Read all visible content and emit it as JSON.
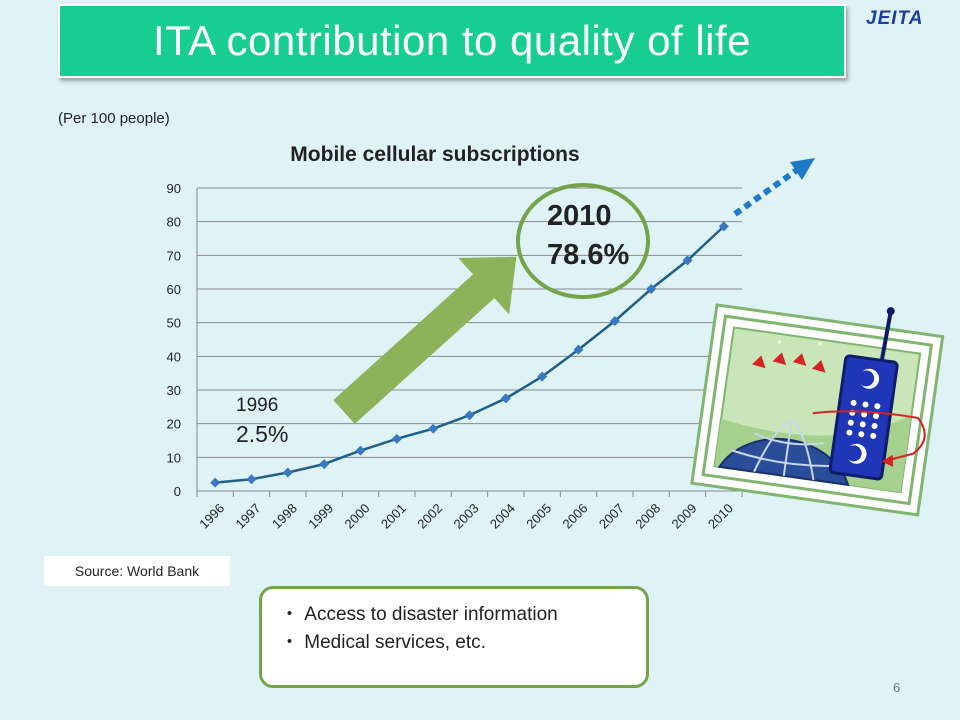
{
  "header": {
    "title": "ITA contribution to quality of life",
    "logo_text": "JEITA"
  },
  "per_note": "(Per 100 people)",
  "chart_data": {
    "type": "line",
    "title": "Mobile cellular subscriptions",
    "x": [
      "1996",
      "1997",
      "1998",
      "1999",
      "2000",
      "2001",
      "2002",
      "2003",
      "2004",
      "2005",
      "2006",
      "2007",
      "2008",
      "2009",
      "2010"
    ],
    "values": [
      2.5,
      3.5,
      5.5,
      8.0,
      12.0,
      15.5,
      18.5,
      22.5,
      27.5,
      34.0,
      42.0,
      50.5,
      60.0,
      68.5,
      78.6
    ],
    "ylim": [
      0,
      90
    ],
    "yticks": [
      0,
      10,
      20,
      30,
      40,
      50,
      60,
      70,
      80,
      90
    ],
    "grid": true,
    "line_color": "#1f5f88",
    "marker_color": "#3a78c2",
    "annotations": {
      "start": {
        "year": "1996",
        "value": "2.5%"
      },
      "end": {
        "year": "2010",
        "value": "78.6%"
      }
    }
  },
  "source": "Source: World Bank",
  "info_box": {
    "items": [
      "・ Access to disaster information",
      "・ Medical services, etc."
    ]
  },
  "page_number": "6",
  "colors": {
    "title_bg": "#17cd92",
    "background": "#dff3f7",
    "arrow": "#8db35a",
    "circle": "#74a34a",
    "trend_arrow": "#1e7ac9"
  },
  "icons": {
    "phone_illustration": "mobile-phone-globe-icon"
  }
}
